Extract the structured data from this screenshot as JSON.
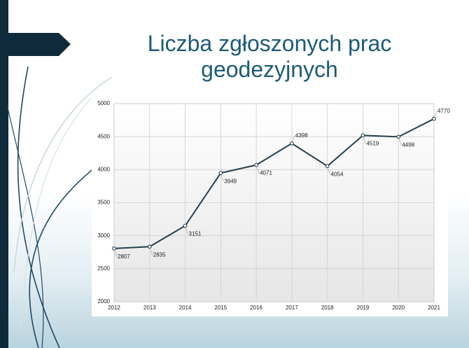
{
  "chart_data": {
    "type": "line",
    "title": "Liczba zgłoszonych prac geodezyjnych",
    "categories": [
      "2012",
      "2013",
      "2014",
      "2015",
      "2016",
      "2017",
      "2018",
      "2019",
      "2020",
      "2021"
    ],
    "series": [
      {
        "color": "#24404f",
        "values": [
          2807,
          2835,
          3151,
          3949,
          4071,
          4398,
          4054,
          4519,
          4498,
          4770
        ]
      }
    ],
    "ylim": [
      2000,
      5000
    ],
    "yticks": [
      2000,
      2500,
      3000,
      3500,
      4000,
      4500,
      5000
    ],
    "grid": true
  }
}
